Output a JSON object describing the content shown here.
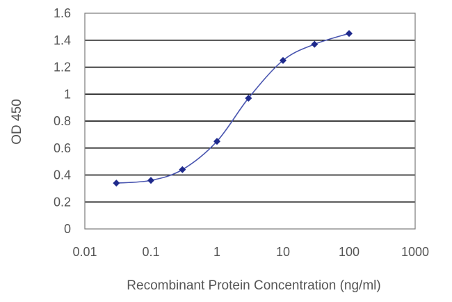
{
  "chart_data": {
    "type": "scatter",
    "title": "",
    "xlabel": "Recombinant Protein Concentration (ng/ml)",
    "ylabel": "OD 450",
    "x_scale": "log",
    "xlim": [
      0.01,
      1000
    ],
    "ylim": [
      0,
      1.6
    ],
    "x_ticks": [
      "0.01",
      "0.1",
      "1",
      "10",
      "100",
      "1000"
    ],
    "y_ticks": [
      "0",
      "0.2",
      "0.4",
      "0.6",
      "0.8",
      "1",
      "1.2",
      "1.4",
      "1.6"
    ],
    "grid": "horizontal",
    "legend": "none",
    "fitted_curve": "sigmoidal",
    "series": [
      {
        "x": [
          0.03,
          0.1,
          0.3,
          1,
          3,
          10,
          30,
          100
        ],
        "y": [
          0.34,
          0.36,
          0.44,
          0.65,
          0.97,
          1.25,
          1.37,
          1.45
        ]
      }
    ],
    "colors": {
      "marker": "#1f2a8c",
      "curve": "#4a56b0",
      "grid": "#000000"
    }
  }
}
